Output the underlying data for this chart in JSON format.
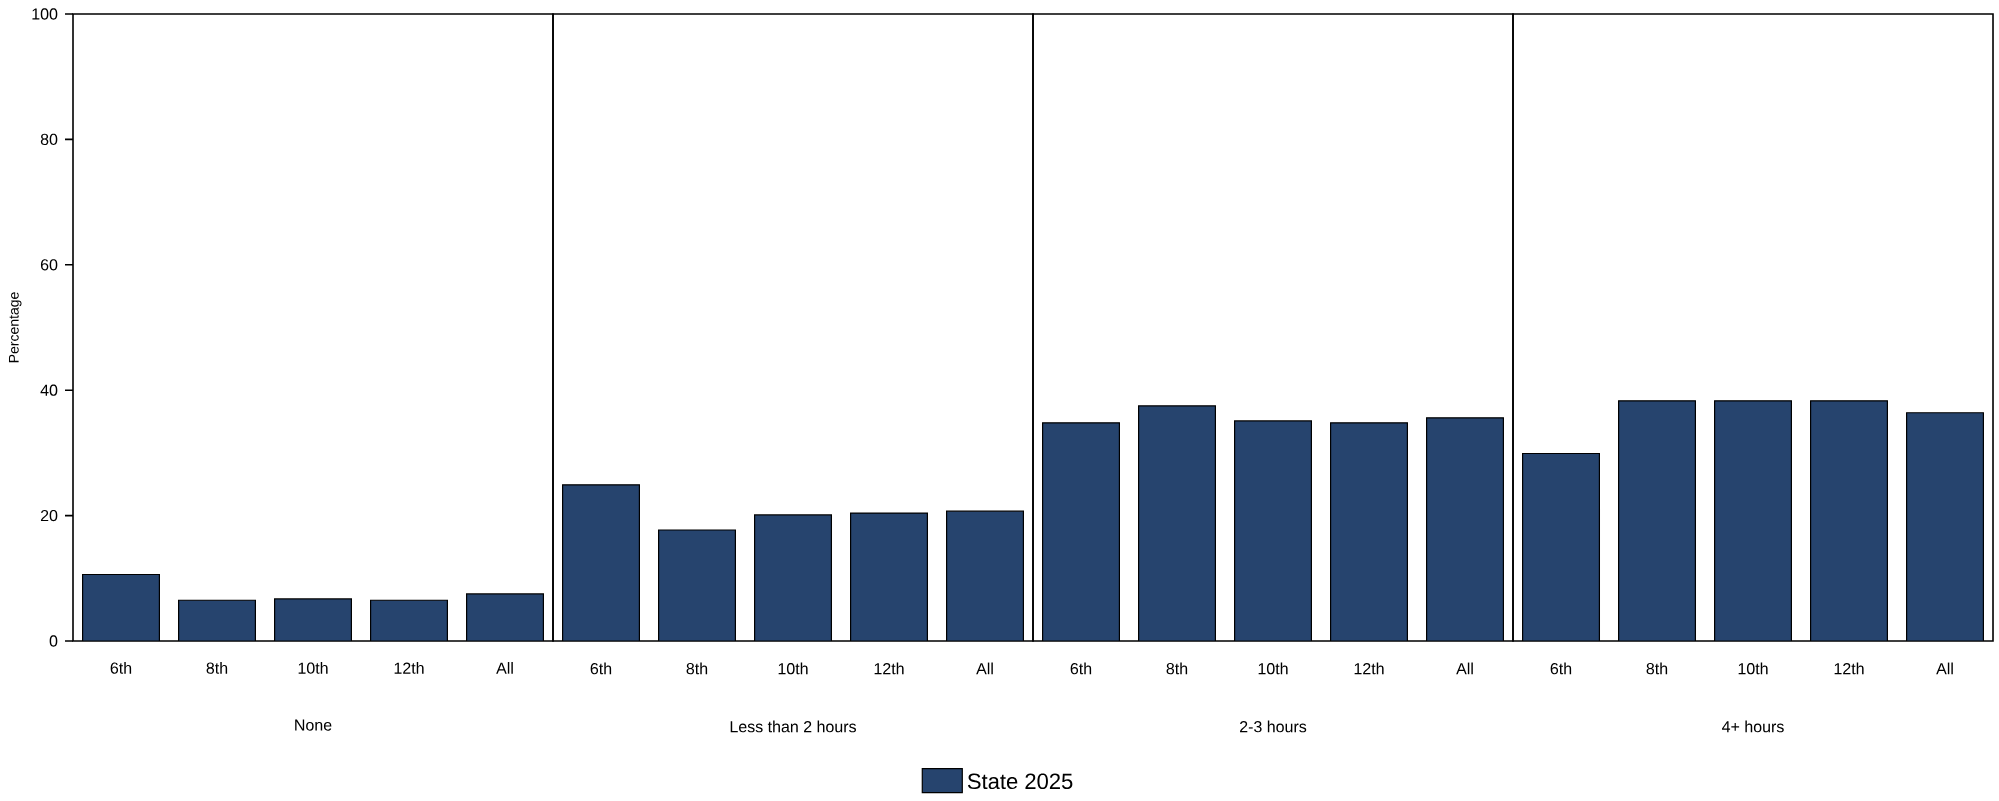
{
  "chart_data": [
    {
      "type": "bar",
      "categories": [
        "6th",
        "8th",
        "10th",
        "12th",
        "All"
      ],
      "xlabel": "None",
      "ylabel": "Percentage",
      "ylim": [
        0,
        100
      ],
      "yticks": [
        0,
        20,
        40,
        60,
        80,
        100
      ],
      "legend": "bottom",
      "series": [
        {
          "name": "State 2025",
          "color": "#26446e",
          "values": [
            10.6,
            6.5,
            6.7,
            6.5,
            7.5
          ]
        }
      ]
    },
    {
      "type": "bar",
      "categories": [
        "6th",
        "8th",
        "10th",
        "12th",
        "All"
      ],
      "xlabel": "Less than 2 hours",
      "ylim": [
        0,
        100
      ],
      "yticks": [
        0,
        20,
        40,
        60,
        80,
        100
      ],
      "tick_labels": "x",
      "series": [
        {
          "color": "#26446e",
          "values": [
            24.9,
            17.7,
            20.1,
            20.4,
            20.7
          ]
        }
      ]
    },
    {
      "type": "bar",
      "categories": [
        "6th",
        "8th",
        "10th",
        "12th",
        "All"
      ],
      "xlabel": "2-3 hours",
      "ylim": [
        0,
        100
      ],
      "yticks": [
        0,
        20,
        40,
        60,
        80,
        100
      ],
      "tick_labels": "x",
      "series": [
        {
          "color": "#26446e",
          "values": [
            34.8,
            37.5,
            35.1,
            34.8,
            35.6
          ]
        }
      ]
    },
    {
      "type": "bar",
      "categories": [
        "6th",
        "8th",
        "10th",
        "12th",
        "All"
      ],
      "xlabel": "4+ hours",
      "ylim": [
        0,
        100
      ],
      "yticks": [
        0,
        20,
        40,
        60,
        80,
        100
      ],
      "tick_labels": "x",
      "series": [
        {
          "color": "#26446e",
          "values": [
            29.9,
            38.3,
            38.3,
            38.3,
            36.4
          ]
        }
      ]
    }
  ]
}
